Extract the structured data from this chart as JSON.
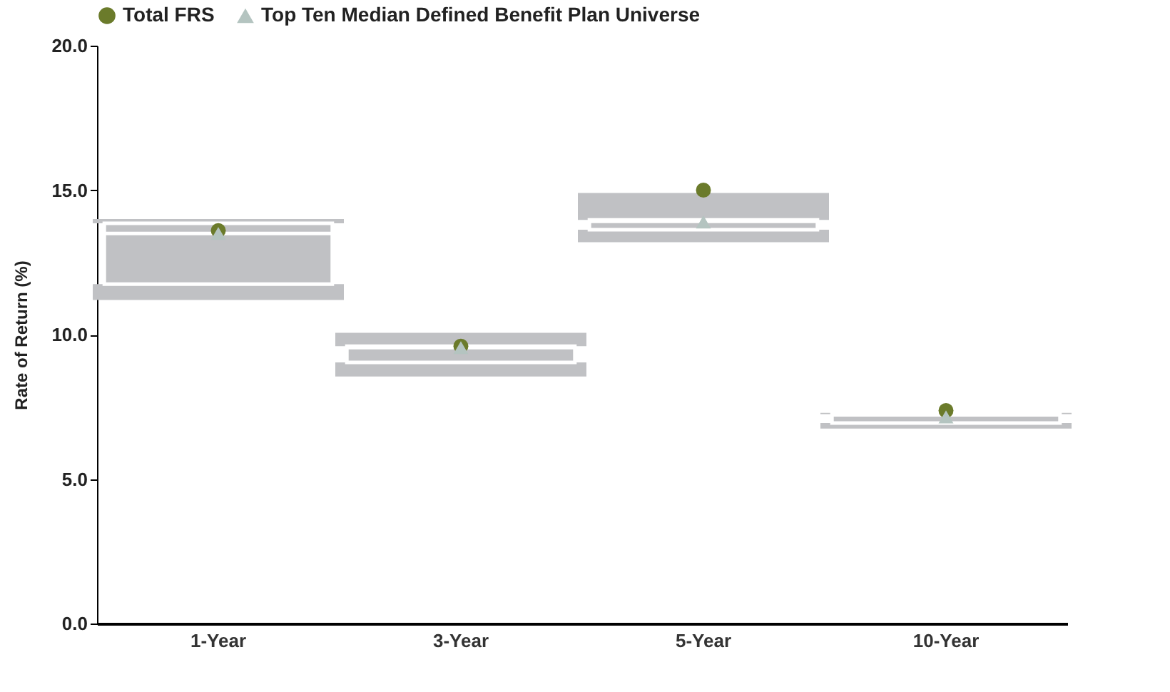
{
  "chart_data": {
    "type": "box",
    "ylabel": "Rate of Return (%)",
    "categories": [
      "1-Year",
      "3-Year",
      "5-Year",
      "10-Year"
    ],
    "boxes": [
      {
        "low": 11.2,
        "q1": 11.75,
        "median": 13.5,
        "q3": 13.85,
        "high": 14.0
      },
      {
        "low": 8.55,
        "q1": 9.04,
        "median": 9.55,
        "q3": 9.6,
        "high": 10.06
      },
      {
        "low": 13.2,
        "q1": 13.63,
        "median": 13.92,
        "q3": 13.97,
        "high": 14.9
      },
      {
        "low": 6.75,
        "q1": 6.94,
        "median": 7.22,
        "q3": 7.25,
        "high": 7.29
      }
    ],
    "series": [
      {
        "name": "Total FRS",
        "type": "scatter",
        "marker": "circle",
        "color": "#6b7b2b",
        "x": [
          "1-Year",
          "3-Year",
          "5-Year",
          "10-Year"
        ],
        "values": [
          13.6,
          9.6,
          15.0,
          7.37
        ]
      },
      {
        "name": "Top Ten Median Defined Benefit Plan Universe",
        "type": "scatter",
        "marker": "triangle",
        "color": "#b4c4c0",
        "x": [
          "1-Year",
          "3-Year",
          "5-Year",
          "10-Year"
        ],
        "values": [
          13.5,
          9.55,
          13.9,
          7.15
        ]
      }
    ],
    "ylim": [
      0,
      20
    ],
    "yticks": [
      {
        "value": 0,
        "label": "0.0"
      },
      {
        "value": 5,
        "label": "5.0"
      },
      {
        "value": 10,
        "label": "10.0"
      },
      {
        "value": 15,
        "label": "15.0"
      },
      {
        "value": 20,
        "label": "20.0"
      }
    ],
    "legend": "top",
    "grid": false
  }
}
